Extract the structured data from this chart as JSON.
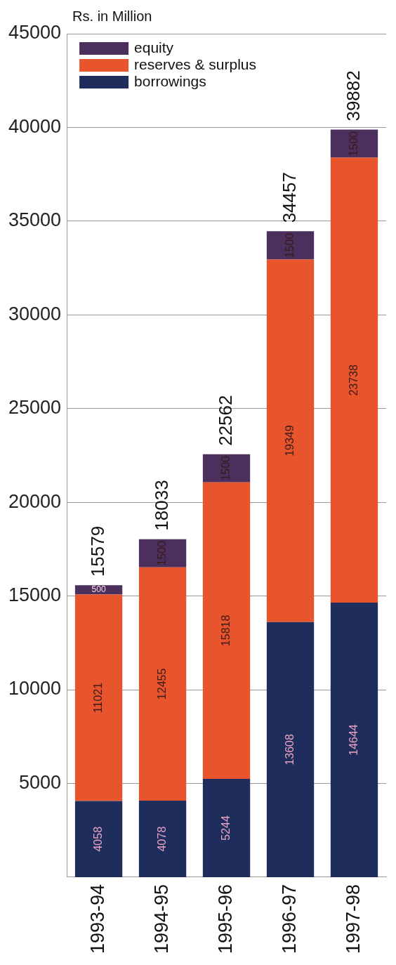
{
  "chart_data": {
    "type": "bar",
    "ylabel": "Rs. in Million",
    "stacked": true,
    "categories": [
      "1993-94",
      "1994-95",
      "1995-96",
      "1996-97",
      "1997-98"
    ],
    "series": [
      {
        "name": "borrowings",
        "color": "#1f2d5c",
        "values": [
          4058,
          4078,
          5244,
          13608,
          14644
        ]
      },
      {
        "name": "reserves & surplus",
        "color": "#e8552d",
        "values": [
          11021,
          12455,
          15818,
          19349,
          23738
        ]
      },
      {
        "name": "equity",
        "color": "#4b2f5c",
        "values": [
          500,
          1500,
          1500,
          1500,
          1500
        ]
      }
    ],
    "totals": [
      "15579",
      "18033",
      "22562",
      "34457",
      "39882"
    ],
    "data_labels": true,
    "ylim": [
      0,
      45000
    ],
    "yticks": [
      5000,
      10000,
      15000,
      20000,
      25000,
      30000,
      35000,
      40000,
      45000
    ],
    "grid": "y",
    "legend": "top left"
  }
}
